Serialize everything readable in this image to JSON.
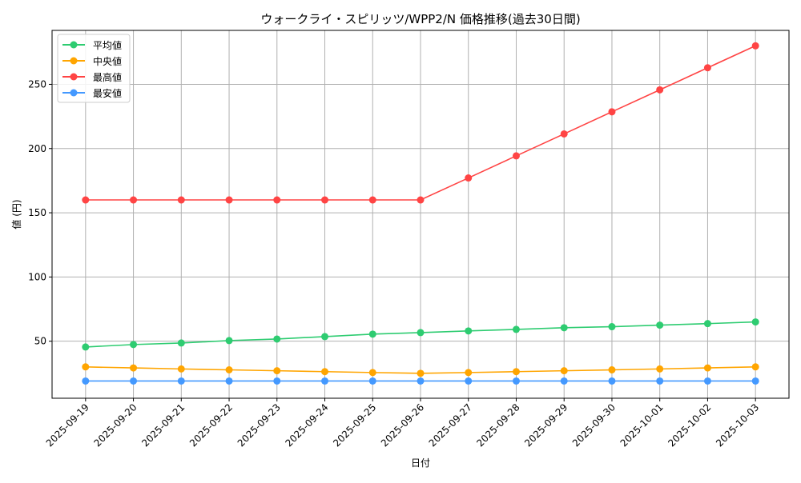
{
  "chart_data": {
    "type": "line",
    "title": "ウォークライ・スピリッツ/WPP2/N 価格推移(過去30日間)",
    "xlabel": "日付",
    "ylabel": "値 (円)",
    "categories": [
      "2025-09-19",
      "2025-09-20",
      "2025-09-21",
      "2025-09-22",
      "2025-09-23",
      "2025-09-24",
      "2025-09-25",
      "2025-09-26",
      "2025-09-27",
      "2025-09-28",
      "2025-09-29",
      "2025-09-30",
      "2025-10-01",
      "2025-10-02",
      "2025-10-03"
    ],
    "yticks": [
      50,
      100,
      150,
      200,
      250
    ],
    "ylim": [
      5.6,
      292
    ],
    "grid": true,
    "legend_position": "top-left",
    "series": [
      {
        "name": "平均値",
        "color": "#2ecc71",
        "values": [
          45.5,
          47.4,
          48.6,
          50.5,
          51.7,
          53.6,
          55.5,
          56.7,
          58.0,
          59.2,
          60.5,
          61.3,
          62.5,
          63.7,
          65.0
        ]
      },
      {
        "name": "中央値",
        "color": "#ffa500",
        "values": [
          30.0,
          29.2,
          28.4,
          27.7,
          27.0,
          26.3,
          25.6,
          25.0,
          25.6,
          26.3,
          27.0,
          27.7,
          28.4,
          29.2,
          30.0
        ]
      },
      {
        "name": "最高値",
        "color": "#ff4444",
        "values": [
          160,
          160,
          160,
          160,
          160,
          160,
          160,
          160,
          177.1,
          194.3,
          211.4,
          228.6,
          245.7,
          262.9,
          280
        ]
      },
      {
        "name": "最安値",
        "color": "#4499ff",
        "values": [
          19,
          19,
          19,
          19,
          19,
          19,
          19,
          19,
          19,
          19,
          19,
          19,
          19,
          19,
          19
        ]
      }
    ]
  }
}
